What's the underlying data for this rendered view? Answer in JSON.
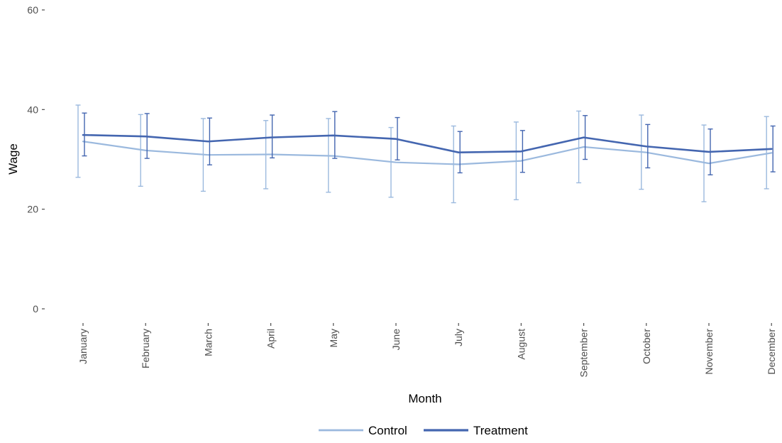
{
  "chart_data": {
    "type": "line",
    "title": "",
    "xlabel": "Month",
    "ylabel": "Wage",
    "ylim": [
      0,
      60
    ],
    "yticks": [
      0,
      20,
      40,
      60
    ],
    "grid": false,
    "legend_position": "bottom",
    "categories": [
      "January",
      "February",
      "March",
      "April",
      "May",
      "June",
      "July",
      "August",
      "September",
      "October",
      "November",
      "December"
    ],
    "series": [
      {
        "name": "Control",
        "color": "#9bb9de",
        "values": [
          33.6,
          31.8,
          30.9,
          31.0,
          30.7,
          29.4,
          29.0,
          29.7,
          32.5,
          31.4,
          29.2,
          31.3
        ],
        "lower": [
          26.4,
          24.6,
          23.6,
          24.1,
          23.4,
          22.4,
          21.3,
          21.9,
          25.3,
          24.0,
          21.5,
          24.1
        ],
        "upper": [
          40.9,
          39.0,
          38.2,
          37.8,
          38.2,
          36.4,
          36.7,
          37.5,
          39.7,
          38.9,
          36.9,
          38.6
        ]
      },
      {
        "name": "Treatment",
        "color": "#4466b0",
        "values": [
          34.9,
          34.6,
          33.6,
          34.4,
          34.8,
          34.1,
          31.4,
          31.6,
          34.4,
          32.6,
          31.5,
          32.1
        ],
        "lower": [
          30.7,
          30.2,
          28.9,
          30.3,
          30.2,
          29.9,
          27.3,
          27.4,
          30.0,
          28.3,
          26.9,
          27.5
        ],
        "upper": [
          39.3,
          39.2,
          38.3,
          38.9,
          39.6,
          38.4,
          35.6,
          35.8,
          38.8,
          37.0,
          36.1,
          36.7
        ]
      }
    ]
  }
}
